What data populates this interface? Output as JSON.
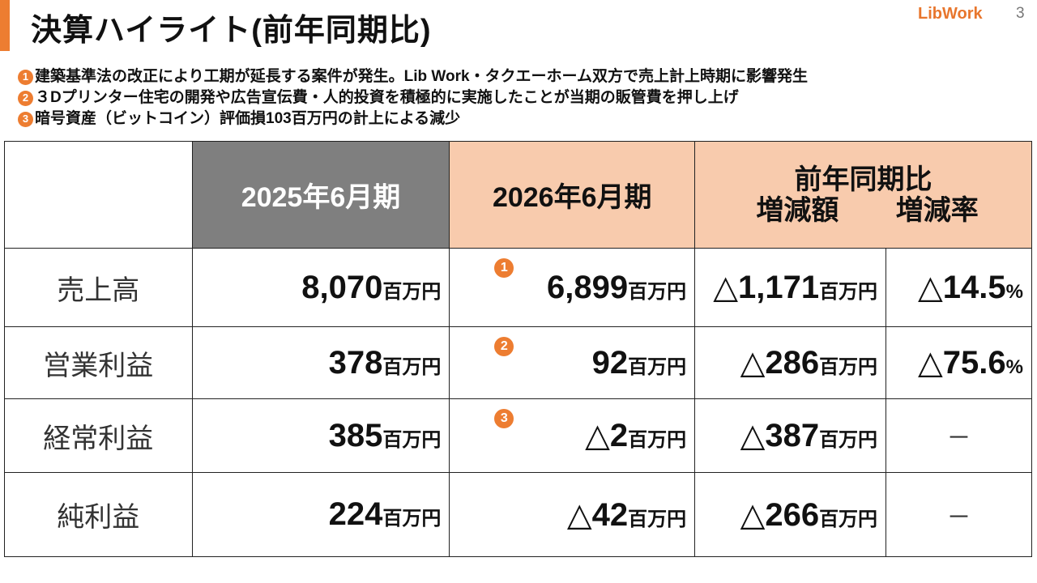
{
  "title": "決算ハイライト(前年同期比)",
  "logo": "LibWork",
  "page_number": "3",
  "accent_color": "#ed7d31",
  "notes": [
    {
      "marker": "1",
      "text": "建築基準法の改正により工期が延長する案件が発生。Lib Work・タクエーホーム双方で売上計上時期に影響発生"
    },
    {
      "marker": "2",
      "text": "３Dプリンター住宅の開発や広告宣伝費・人的投資を積極的に実施したことが当期の販管費を押し上げ"
    },
    {
      "marker": "3",
      "text": "暗号資産（ビットコイン）評価損103百万円の計上による減少"
    }
  ],
  "table": {
    "headers": {
      "prev": "2025年6月期",
      "curr": "2026年6月期",
      "yoy": "前年同期比",
      "diff": "増減額",
      "rate": "増減率"
    },
    "unit": "百万円",
    "rows": [
      {
        "label": "売上高",
        "prev": "8,070",
        "marker": "1",
        "curr": "6,899",
        "diff": "△1,171",
        "rate": "△14.5",
        "rate_unit": "%"
      },
      {
        "label": "営業利益",
        "prev": "378",
        "marker": "2",
        "curr": "92",
        "diff": "△286",
        "rate": "△75.6",
        "rate_unit": "%"
      },
      {
        "label": "経常利益",
        "prev": "385",
        "marker": "3",
        "curr": "△2",
        "diff": "△387",
        "rate": "－"
      },
      {
        "label": "純利益",
        "prev": "224",
        "curr": "△42",
        "diff": "△266",
        "rate": "－"
      }
    ]
  }
}
